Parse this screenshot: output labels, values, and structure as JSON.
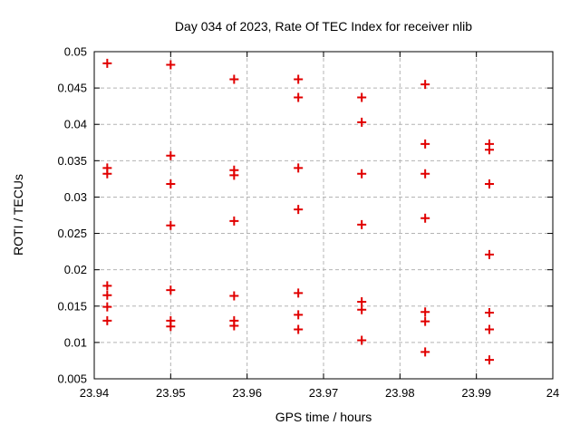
{
  "chart_data": {
    "type": "scatter",
    "title": "Day 034 of 2023, Rate Of TEC Index for receiver nlib",
    "xlabel": "GPS time / hours",
    "ylabel": "ROTI / TECUs",
    "xlim": [
      23.94,
      24
    ],
    "ylim": [
      0.005,
      0.05
    ],
    "xtick_values": [
      23.94,
      23.95,
      23.96,
      23.97,
      23.98,
      23.99,
      24
    ],
    "xtick_labels": [
      "23.94",
      "23.95",
      "23.96",
      "23.97",
      "23.98",
      "23.99",
      "24"
    ],
    "ytick_values": [
      0.005,
      0.01,
      0.015,
      0.02,
      0.025,
      0.03,
      0.035,
      0.04,
      0.045,
      0.05
    ],
    "ytick_labels": [
      "0.005",
      "0.01",
      "0.015",
      "0.02",
      "0.025",
      "0.03",
      "0.035",
      "0.04",
      "0.045",
      "0.05"
    ],
    "grid": true,
    "legend": "none",
    "marker": "plus-cross",
    "marker_color": "#e10000",
    "points": [
      [
        23.9417,
        0.0484
      ],
      [
        23.9417,
        0.034
      ],
      [
        23.9417,
        0.0332
      ],
      [
        23.9417,
        0.0178
      ],
      [
        23.9417,
        0.0165
      ],
      [
        23.9417,
        0.0149
      ],
      [
        23.9417,
        0.013
      ],
      [
        23.95,
        0.0482
      ],
      [
        23.95,
        0.0357
      ],
      [
        23.95,
        0.0318
      ],
      [
        23.95,
        0.0261
      ],
      [
        23.95,
        0.0172
      ],
      [
        23.95,
        0.013
      ],
      [
        23.95,
        0.0122
      ],
      [
        23.9583,
        0.0462
      ],
      [
        23.9583,
        0.0337
      ],
      [
        23.9583,
        0.033
      ],
      [
        23.9583,
        0.0267
      ],
      [
        23.9583,
        0.0164
      ],
      [
        23.9583,
        0.013
      ],
      [
        23.9583,
        0.0123
      ],
      [
        23.9667,
        0.0462
      ],
      [
        23.9667,
        0.0437
      ],
      [
        23.9667,
        0.034
      ],
      [
        23.9667,
        0.0283
      ],
      [
        23.9667,
        0.0168
      ],
      [
        23.9667,
        0.0138
      ],
      [
        23.9667,
        0.0118
      ],
      [
        23.975,
        0.0437
      ],
      [
        23.975,
        0.0403
      ],
      [
        23.975,
        0.0332
      ],
      [
        23.975,
        0.0262
      ],
      [
        23.975,
        0.0156
      ],
      [
        23.975,
        0.0145
      ],
      [
        23.975,
        0.0103
      ],
      [
        23.9833,
        0.0455
      ],
      [
        23.9833,
        0.0373
      ],
      [
        23.9833,
        0.0332
      ],
      [
        23.9833,
        0.0271
      ],
      [
        23.9833,
        0.0142
      ],
      [
        23.9833,
        0.0129
      ],
      [
        23.9833,
        0.0087
      ],
      [
        23.9917,
        0.0373
      ],
      [
        23.9917,
        0.0365
      ],
      [
        23.9917,
        0.0318
      ],
      [
        23.9917,
        0.0221
      ],
      [
        23.9917,
        0.0141
      ],
      [
        23.9917,
        0.0118
      ],
      [
        23.9917,
        0.0076
      ]
    ]
  }
}
